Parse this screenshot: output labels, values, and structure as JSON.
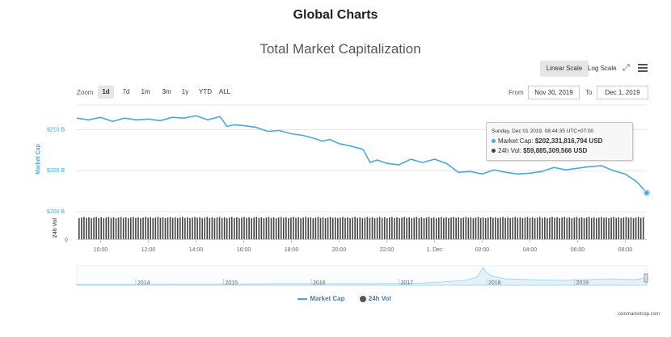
{
  "page_title": "Global Charts",
  "chart_title": "Total Market Capitalization",
  "scale_buttons": {
    "linear": "Linear Scale",
    "log": "Log Scale"
  },
  "zoom": {
    "label": "Zoom",
    "options": [
      "1d",
      "7d",
      "1m",
      "3m",
      "1y",
      "YTD",
      "ALL"
    ],
    "selected": "1d"
  },
  "range": {
    "from_label": "From",
    "from_value": "Nov 30, 2019",
    "to_label": "To",
    "to_value": "Dec 1, 2019"
  },
  "tooltip": {
    "date": "Sunday, Dec 01 2019, 08:44:35 UTC+07:00",
    "market_cap_label": "Market Cap:",
    "market_cap_value": "$202,331,816,794 USD",
    "vol_label": "24h Vol:",
    "vol_value": "$59,885,309,566 USD"
  },
  "legend": [
    "Market Cap",
    "24h Vol"
  ],
  "credit": "coinmarketcap.com",
  "colors": {
    "market_cap": "#4aa8e0",
    "volume": "#444444",
    "tooltip_border": "#c6c6c6"
  },
  "chart_data": {
    "type": "line",
    "title": "Total Market Capitalization",
    "ylabel": "Market Cap",
    "ylabel2": "24h Vol",
    "y_ticks": [
      "$200 B",
      "$205 B",
      "$210 B"
    ],
    "ylim": [
      200,
      213
    ],
    "x_ticks": [
      "10:00",
      "12:00",
      "14:00",
      "16:00",
      "18:00",
      "20:00",
      "22:00",
      "1. Dec",
      "02:00",
      "04:00",
      "06:00",
      "08:00"
    ],
    "x_range_hours": [
      9.0,
      32.9
    ],
    "series": [
      {
        "name": "Market Cap",
        "unit": "B USD",
        "x_hours": [
          9.0,
          9.5,
          10.0,
          10.5,
          11.0,
          11.5,
          12.0,
          12.5,
          13.0,
          13.5,
          14.0,
          14.5,
          15.0,
          15.3,
          15.6,
          16.0,
          16.5,
          17.0,
          17.5,
          18.0,
          18.5,
          19.0,
          19.3,
          19.6,
          20.0,
          20.5,
          21.0,
          21.3,
          21.6,
          22.0,
          22.5,
          23.0,
          23.5,
          24.0,
          24.5,
          25.0,
          25.5,
          26.0,
          26.5,
          27.0,
          27.5,
          28.0,
          28.5,
          29.0,
          29.5,
          30.0,
          30.5,
          31.0,
          31.5,
          32.0,
          32.5,
          32.9
        ],
        "values": [
          211.4,
          211.2,
          211.5,
          211.0,
          211.4,
          211.2,
          211.3,
          211.1,
          211.5,
          211.4,
          211.7,
          211.2,
          211.6,
          210.4,
          210.6,
          210.5,
          210.3,
          209.8,
          209.9,
          209.5,
          209.3,
          208.9,
          208.6,
          208.8,
          208.3,
          208.0,
          207.6,
          206.0,
          206.3,
          205.9,
          205.7,
          206.4,
          206.0,
          206.4,
          205.9,
          204.8,
          204.9,
          204.6,
          205.1,
          204.8,
          204.6,
          204.7,
          204.9,
          205.4,
          205.1,
          205.3,
          205.5,
          205.6,
          205.0,
          204.6,
          203.6,
          202.3
        ]
      },
      {
        "name": "24h Vol",
        "unit": "relative",
        "note_series": "uniform volume bars across the range"
      }
    ],
    "navigator": {
      "x_ticks": [
        "2014",
        "2015",
        "2016",
        "2017",
        "2018",
        "2019"
      ]
    },
    "grid": "horizontal",
    "legend_position": "bottom-center"
  }
}
